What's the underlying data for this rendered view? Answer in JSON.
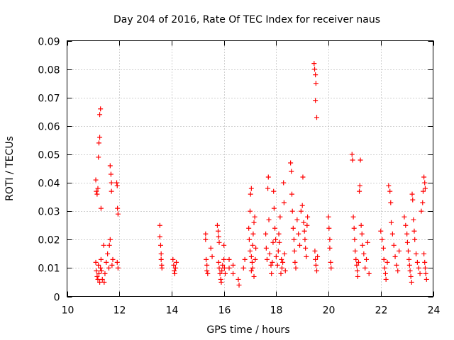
{
  "chart_data": {
    "type": "scatter",
    "title": "Day 204 of 2016, Rate Of TEC Index for receiver naus",
    "xlabel": "GPS time / hours",
    "ylabel": "ROTI / TECUs",
    "xlim": [
      10,
      24
    ],
    "ylim": [
      0,
      0.09
    ],
    "xticks": [
      10,
      12,
      14,
      16,
      18,
      20,
      22,
      24
    ],
    "yticks": [
      0,
      0.01,
      0.02,
      0.03,
      0.04,
      0.05,
      0.06,
      0.07,
      0.08,
      0.09
    ],
    "xtick_labels": [
      "10",
      "12",
      "14",
      "16",
      "18",
      "20",
      "22",
      "24"
    ],
    "ytick_labels": [
      "0",
      "0.01",
      "0.02",
      "0.03",
      "0.04",
      "0.05",
      "0.06",
      "0.07",
      "0.08",
      "0.09"
    ],
    "grid": true,
    "marker": "+",
    "series": [
      {
        "name": "ROTI",
        "color": "#ff0000",
        "points": [
          [
            11.1,
            0.041
          ],
          [
            11.12,
            0.037
          ],
          [
            11.15,
            0.036
          ],
          [
            11.18,
            0.038
          ],
          [
            11.2,
            0.049
          ],
          [
            11.22,
            0.054
          ],
          [
            11.25,
            0.056
          ],
          [
            11.25,
            0.064
          ],
          [
            11.28,
            0.066
          ],
          [
            11.3,
            0.031
          ],
          [
            11.1,
            0.012
          ],
          [
            11.12,
            0.009
          ],
          [
            11.15,
            0.007
          ],
          [
            11.18,
            0.006
          ],
          [
            11.2,
            0.011
          ],
          [
            11.22,
            0.008
          ],
          [
            11.25,
            0.005
          ],
          [
            11.28,
            0.01
          ],
          [
            11.3,
            0.013
          ],
          [
            11.32,
            0.009
          ],
          [
            11.35,
            0.006
          ],
          [
            11.4,
            0.018
          ],
          [
            11.42,
            0.005
          ],
          [
            11.45,
            0.008
          ],
          [
            11.5,
            0.012
          ],
          [
            11.55,
            0.015
          ],
          [
            11.6,
            0.01
          ],
          [
            11.62,
            0.018
          ],
          [
            11.65,
            0.02
          ],
          [
            11.65,
            0.046
          ],
          [
            11.68,
            0.043
          ],
          [
            11.7,
            0.04
          ],
          [
            11.7,
            0.037
          ],
          [
            11.72,
            0.011
          ],
          [
            11.75,
            0.013
          ],
          [
            11.9,
            0.04
          ],
          [
            11.92,
            0.039
          ],
          [
            11.93,
            0.031
          ],
          [
            11.95,
            0.029
          ],
          [
            11.92,
            0.012
          ],
          [
            11.95,
            0.01
          ],
          [
            13.55,
            0.025
          ],
          [
            13.55,
            0.021
          ],
          [
            13.58,
            0.018
          ],
          [
            13.6,
            0.015
          ],
          [
            13.6,
            0.013
          ],
          [
            13.62,
            0.011
          ],
          [
            13.63,
            0.01
          ],
          [
            14.05,
            0.013
          ],
          [
            14.08,
            0.011
          ],
          [
            14.1,
            0.009
          ],
          [
            14.12,
            0.008
          ],
          [
            14.15,
            0.01
          ],
          [
            14.18,
            0.012
          ],
          [
            15.3,
            0.022
          ],
          [
            15.3,
            0.02
          ],
          [
            15.32,
            0.013
          ],
          [
            15.35,
            0.011
          ],
          [
            15.35,
            0.009
          ],
          [
            15.38,
            0.008
          ],
          [
            15.5,
            0.017
          ],
          [
            15.55,
            0.014
          ],
          [
            15.75,
            0.025
          ],
          [
            15.78,
            0.023
          ],
          [
            15.8,
            0.021
          ],
          [
            15.82,
            0.019
          ],
          [
            15.8,
            0.012
          ],
          [
            15.82,
            0.01
          ],
          [
            15.85,
            0.008
          ],
          [
            15.88,
            0.006
          ],
          [
            15.9,
            0.005
          ],
          [
            15.92,
            0.009
          ],
          [
            15.95,
            0.011
          ],
          [
            16.0,
            0.013
          ],
          [
            16.0,
            0.018
          ],
          [
            16.02,
            0.01
          ],
          [
            16.05,
            0.008
          ],
          [
            16.2,
            0.013
          ],
          [
            16.2,
            0.01
          ],
          [
            16.35,
            0.011
          ],
          [
            16.35,
            0.008
          ],
          [
            16.55,
            0.006
          ],
          [
            16.58,
            0.004
          ],
          [
            16.75,
            0.01
          ],
          [
            16.8,
            0.013
          ],
          [
            16.95,
            0.024
          ],
          [
            16.97,
            0.02
          ],
          [
            17.0,
            0.03
          ],
          [
            17.02,
            0.036
          ],
          [
            17.05,
            0.038
          ],
          [
            17.0,
            0.016
          ],
          [
            17.05,
            0.014
          ],
          [
            17.08,
            0.012
          ],
          [
            17.1,
            0.018
          ],
          [
            17.12,
            0.022
          ],
          [
            17.15,
            0.026
          ],
          [
            17.18,
            0.028
          ],
          [
            17.05,
            0.009
          ],
          [
            17.1,
            0.01
          ],
          [
            17.15,
            0.007
          ],
          [
            17.2,
            0.013
          ],
          [
            17.22,
            0.017
          ],
          [
            17.6,
            0.022
          ],
          [
            17.62,
            0.017
          ],
          [
            17.65,
            0.013
          ],
          [
            17.68,
            0.038
          ],
          [
            17.7,
            0.042
          ],
          [
            17.72,
            0.027
          ],
          [
            17.75,
            0.015
          ],
          [
            17.8,
            0.011
          ],
          [
            17.82,
            0.008
          ],
          [
            17.85,
            0.012
          ],
          [
            17.88,
            0.019
          ],
          [
            17.9,
            0.037
          ],
          [
            17.92,
            0.031
          ],
          [
            17.95,
            0.024
          ],
          [
            17.98,
            0.02
          ],
          [
            18.0,
            0.014
          ],
          [
            18.05,
            0.011
          ],
          [
            18.08,
            0.016
          ],
          [
            18.1,
            0.022
          ],
          [
            18.12,
            0.019
          ],
          [
            18.15,
            0.028
          ],
          [
            18.18,
            0.008
          ],
          [
            18.2,
            0.013
          ],
          [
            18.22,
            0.01
          ],
          [
            18.25,
            0.012
          ],
          [
            18.28,
            0.04
          ],
          [
            18.3,
            0.033
          ],
          [
            18.32,
            0.015
          ],
          [
            18.35,
            0.009
          ],
          [
            18.55,
            0.047
          ],
          [
            18.58,
            0.044
          ],
          [
            18.6,
            0.036
          ],
          [
            18.62,
            0.03
          ],
          [
            18.65,
            0.024
          ],
          [
            18.68,
            0.02
          ],
          [
            18.7,
            0.016
          ],
          [
            18.72,
            0.012
          ],
          [
            18.75,
            0.01
          ],
          [
            18.8,
            0.027
          ],
          [
            18.85,
            0.022
          ],
          [
            18.9,
            0.018
          ],
          [
            18.95,
            0.03
          ],
          [
            19.0,
            0.032
          ],
          [
            19.02,
            0.042
          ],
          [
            19.05,
            0.026
          ],
          [
            19.08,
            0.023
          ],
          [
            19.1,
            0.02
          ],
          [
            19.12,
            0.017
          ],
          [
            19.15,
            0.014
          ],
          [
            19.18,
            0.025
          ],
          [
            19.2,
            0.028
          ],
          [
            19.45,
            0.082
          ],
          [
            19.47,
            0.08
          ],
          [
            19.5,
            0.078
          ],
          [
            19.52,
            0.075
          ],
          [
            19.5,
            0.069
          ],
          [
            19.55,
            0.063
          ],
          [
            19.48,
            0.016
          ],
          [
            19.5,
            0.013
          ],
          [
            19.52,
            0.011
          ],
          [
            19.55,
            0.009
          ],
          [
            19.58,
            0.014
          ],
          [
            20.0,
            0.028
          ],
          [
            20.02,
            0.024
          ],
          [
            20.05,
            0.02
          ],
          [
            20.05,
            0.017
          ],
          [
            20.08,
            0.012
          ],
          [
            20.1,
            0.01
          ],
          [
            20.9,
            0.05
          ],
          [
            20.92,
            0.048
          ],
          [
            20.95,
            0.028
          ],
          [
            20.98,
            0.024
          ],
          [
            21.0,
            0.02
          ],
          [
            21.02,
            0.016
          ],
          [
            21.05,
            0.013
          ],
          [
            21.08,
            0.011
          ],
          [
            21.1,
            0.009
          ],
          [
            21.12,
            0.007
          ],
          [
            21.15,
            0.012
          ],
          [
            21.18,
            0.037
          ],
          [
            21.2,
            0.039
          ],
          [
            21.22,
            0.048
          ],
          [
            21.25,
            0.025
          ],
          [
            21.28,
            0.022
          ],
          [
            21.3,
            0.018
          ],
          [
            21.35,
            0.015
          ],
          [
            21.4,
            0.01
          ],
          [
            21.45,
            0.013
          ],
          [
            21.5,
            0.019
          ],
          [
            21.55,
            0.008
          ],
          [
            22.0,
            0.023
          ],
          [
            22.05,
            0.02
          ],
          [
            22.1,
            0.017
          ],
          [
            22.12,
            0.013
          ],
          [
            22.15,
            0.01
          ],
          [
            22.18,
            0.008
          ],
          [
            22.2,
            0.006
          ],
          [
            22.25,
            0.012
          ],
          [
            22.3,
            0.039
          ],
          [
            22.35,
            0.037
          ],
          [
            22.38,
            0.033
          ],
          [
            22.4,
            0.026
          ],
          [
            22.45,
            0.022
          ],
          [
            22.5,
            0.018
          ],
          [
            22.55,
            0.014
          ],
          [
            22.6,
            0.011
          ],
          [
            22.65,
            0.009
          ],
          [
            22.7,
            0.016
          ],
          [
            22.9,
            0.028
          ],
          [
            22.95,
            0.025
          ],
          [
            23.0,
            0.022
          ],
          [
            23.02,
            0.019
          ],
          [
            23.05,
            0.016
          ],
          [
            23.08,
            0.013
          ],
          [
            23.1,
            0.011
          ],
          [
            23.12,
            0.009
          ],
          [
            23.15,
            0.007
          ],
          [
            23.18,
            0.005
          ],
          [
            23.2,
            0.036
          ],
          [
            23.22,
            0.034
          ],
          [
            23.25,
            0.027
          ],
          [
            23.28,
            0.023
          ],
          [
            23.3,
            0.02
          ],
          [
            23.35,
            0.015
          ],
          [
            23.4,
            0.012
          ],
          [
            23.45,
            0.01
          ],
          [
            23.5,
            0.008
          ],
          [
            23.55,
            0.03
          ],
          [
            23.6,
            0.033
          ],
          [
            23.62,
            0.037
          ],
          [
            23.65,
            0.042
          ],
          [
            23.68,
            0.04
          ],
          [
            23.7,
            0.038
          ],
          [
            23.65,
            0.015
          ],
          [
            23.68,
            0.012
          ],
          [
            23.7,
            0.01
          ],
          [
            23.72,
            0.008
          ],
          [
            23.75,
            0.006
          ]
        ]
      }
    ]
  }
}
